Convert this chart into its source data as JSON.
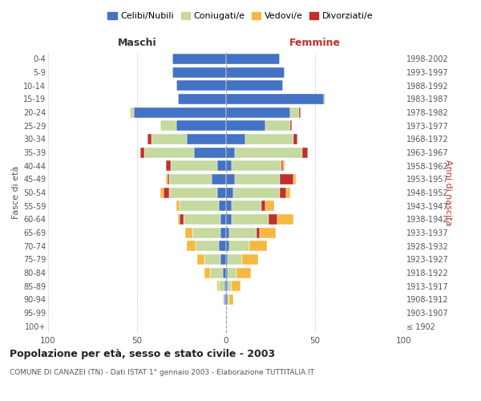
{
  "age_groups": [
    "100+",
    "95-99",
    "90-94",
    "85-89",
    "80-84",
    "75-79",
    "70-74",
    "65-69",
    "60-64",
    "55-59",
    "50-54",
    "45-49",
    "40-44",
    "35-39",
    "30-34",
    "25-29",
    "20-24",
    "15-19",
    "10-14",
    "5-9",
    "0-4"
  ],
  "birth_years": [
    "≤ 1902",
    "1903-1907",
    "1908-1912",
    "1913-1917",
    "1918-1922",
    "1923-1927",
    "1928-1932",
    "1933-1937",
    "1938-1942",
    "1943-1947",
    "1948-1952",
    "1953-1957",
    "1958-1962",
    "1963-1967",
    "1968-1972",
    "1973-1977",
    "1978-1982",
    "1983-1987",
    "1988-1992",
    "1993-1997",
    "1998-2002"
  ],
  "maschi": {
    "celibi": [
      0,
      0,
      1,
      1,
      2,
      3,
      4,
      3,
      3,
      4,
      5,
      8,
      5,
      18,
      22,
      28,
      52,
      27,
      28,
      30,
      30
    ],
    "coniugati": [
      0,
      0,
      1,
      3,
      7,
      9,
      13,
      16,
      21,
      22,
      27,
      24,
      26,
      28,
      20,
      9,
      2,
      0,
      0,
      0,
      0
    ],
    "vedovi": [
      0,
      0,
      0,
      1,
      3,
      4,
      5,
      4,
      1,
      2,
      2,
      1,
      0,
      0,
      0,
      0,
      0,
      0,
      0,
      0,
      0
    ],
    "divorziati": [
      0,
      0,
      0,
      0,
      0,
      0,
      0,
      0,
      2,
      0,
      3,
      1,
      3,
      2,
      2,
      0,
      0,
      0,
      0,
      0,
      0
    ]
  },
  "femmine": {
    "nubili": [
      0,
      0,
      1,
      1,
      1,
      1,
      2,
      2,
      3,
      3,
      4,
      5,
      3,
      5,
      11,
      22,
      36,
      55,
      32,
      33,
      30
    ],
    "coniugate": [
      0,
      0,
      1,
      2,
      5,
      8,
      11,
      15,
      21,
      17,
      26,
      25,
      28,
      38,
      27,
      14,
      5,
      1,
      0,
      0,
      0
    ],
    "vedove": [
      0,
      0,
      2,
      5,
      8,
      9,
      10,
      9,
      9,
      5,
      2,
      1,
      1,
      0,
      0,
      0,
      0,
      0,
      0,
      0,
      0
    ],
    "divorziate": [
      0,
      0,
      0,
      0,
      0,
      0,
      0,
      2,
      5,
      2,
      4,
      8,
      1,
      3,
      2,
      1,
      1,
      0,
      0,
      0,
      0
    ]
  },
  "colors": {
    "celibi_nubili": "#4472c4",
    "coniugati": "#c5d9a0",
    "vedovi": "#f5b942",
    "divorziati": "#c0302a"
  },
  "title": "Popolazione per età, sesso e stato civile - 2003",
  "subtitle": "COMUNE DI CANAZEI (TN) - Dati ISTAT 1° gennaio 2003 - Elaborazione TUTTITALIA.IT",
  "xlabel_left": "Maschi",
  "xlabel_right": "Femmine",
  "ylabel_left": "Fasce di età",
  "ylabel_right": "Anni di nascita",
  "xlim": 100,
  "legend_labels": [
    "Celibi/Nubili",
    "Coniugati/e",
    "Vedovi/e",
    "Divorziati/e"
  ],
  "background_color": "#ffffff"
}
